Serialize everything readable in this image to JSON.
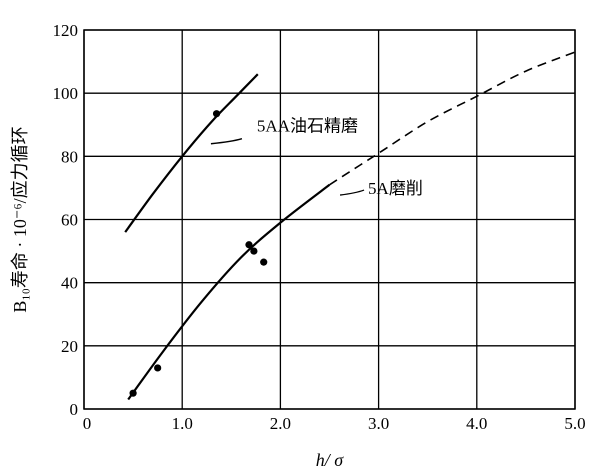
{
  "chart_data": {
    "type": "line",
    "xlabel": "h/ σ",
    "ylabel": "B₁₀寿命 · 10⁻⁶/应力循环",
    "xlim": [
      0,
      5.0
    ],
    "ylim": [
      0,
      120
    ],
    "xticks": [
      "0",
      "1.0",
      "2.0",
      "3.0",
      "4.0",
      "5.0"
    ],
    "yticks": [
      "0",
      "20",
      "40",
      "60",
      "80",
      "100",
      "120"
    ],
    "grid": true,
    "series": [
      {
        "name": "5AA油石精磨",
        "style": "solid",
        "x": [
          0.42,
          0.7,
          1.0,
          1.3,
          1.55,
          1.77
        ],
        "y": [
          56,
          68,
          80,
          91,
          99,
          106
        ]
      },
      {
        "name": "5A磨削",
        "style": "solid",
        "x": [
          0.45,
          0.8,
          1.2,
          1.6,
          2.0,
          2.5
        ],
        "y": [
          3,
          18,
          34,
          48,
          59,
          71
        ]
      },
      {
        "name": "5A磨削 (extrapolated)",
        "style": "dashed",
        "x": [
          2.5,
          3.0,
          3.5,
          4.0,
          4.5,
          5.0
        ],
        "y": [
          71,
          81,
          91,
          99,
          107,
          113
        ]
      }
    ],
    "points": [
      {
        "x": 1.35,
        "y": 93.5
      },
      {
        "x": 0.5,
        "y": 5
      },
      {
        "x": 0.75,
        "y": 13
      },
      {
        "x": 1.68,
        "y": 52
      },
      {
        "x": 1.73,
        "y": 50
      },
      {
        "x": 1.83,
        "y": 46.5
      }
    ],
    "annotations": [
      {
        "text": "5AA油石精磨",
        "anchor": {
          "x": 1.15,
          "y": 84
        }
      },
      {
        "text": "5A磨削",
        "anchor": {
          "x": 2.75,
          "y": 69
        }
      }
    ],
    "colors": {
      "line": "#000000",
      "grid": "#000000",
      "background": "#ffffff"
    }
  }
}
